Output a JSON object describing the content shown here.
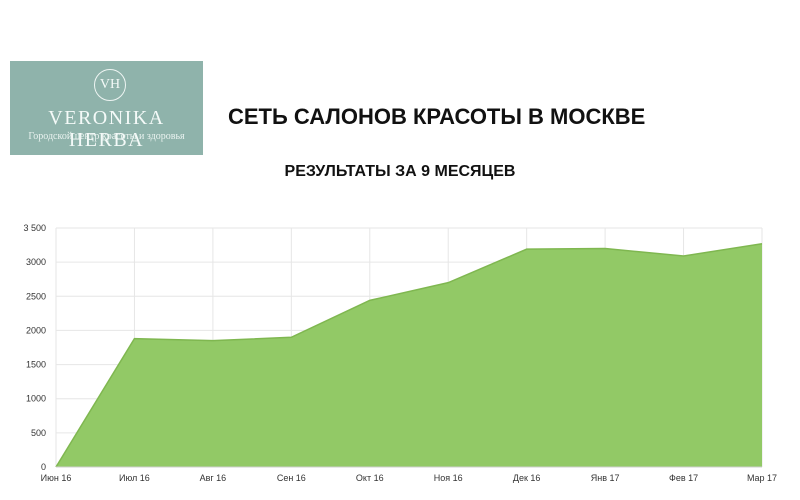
{
  "logo": {
    "monogram": "VH",
    "name": "VERONIKA HERBA",
    "tagline": "Городской центр красоты и здоровья"
  },
  "header": {
    "title": "СЕТЬ САЛОНОВ КРАСОТЫ В МОСКВЕ",
    "subtitle": "РЕЗУЛЬТАТЫ ЗА 9 МЕСЯЦЕВ"
  },
  "chart_data": {
    "type": "area",
    "categories": [
      "Июн 16",
      "Июл 16",
      "Авг 16",
      "Сен 16",
      "Окт 16",
      "Ноя 16",
      "Дек 16",
      "Янв 17",
      "Фев 17",
      "Мар 17"
    ],
    "series": [
      {
        "values": [
          0,
          1880,
          1850,
          1900,
          2440,
          2700,
          3190,
          3200,
          3090,
          3270
        ]
      }
    ],
    "ylim": [
      0,
      3500
    ],
    "y_ticks": [
      "0",
      "500",
      "1000",
      "1500",
      "2000",
      "2500",
      "3000",
      "3 500"
    ],
    "y_tick_values": [
      0,
      500,
      1000,
      1500,
      2000,
      2500,
      3000,
      3500
    ],
    "grid": true,
    "fill_color": "#92c966",
    "line_color": "#7fb750"
  }
}
